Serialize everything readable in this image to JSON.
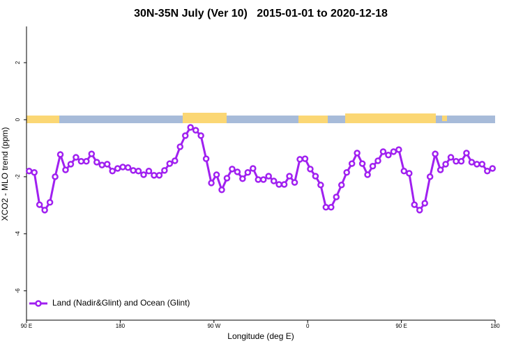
{
  "chart_data": {
    "type": "line",
    "title": "30N-35N July (Ver 10)   2015-01-01 to 2020-12-18",
    "x_label": "Longitude (deg E)",
    "y_label": "XCO2 - MLO trend (ppm)",
    "xlim": [
      90,
      540
    ],
    "xticks": [
      {
        "value": 90,
        "label": "90 E"
      },
      {
        "value": 180,
        "label": "180"
      },
      {
        "value": 270,
        "label": "90 W"
      },
      {
        "value": 360,
        "label": "0"
      },
      {
        "value": 450,
        "label": "90 E"
      },
      {
        "value": 540,
        "label": "180"
      }
    ],
    "ylim": [
      -7.03,
      3.27
    ],
    "yticks": [
      -6,
      -4,
      -2,
      0,
      2
    ],
    "legend": "bottom-left",
    "x": [
      92.5,
      97.5,
      102.5,
      107.5,
      112.5,
      117.5,
      122.5,
      127.5,
      132.5,
      137.5,
      142.5,
      147.5,
      152.5,
      157.5,
      162.5,
      167.5,
      172.5,
      177.5,
      182.5,
      187.5,
      192.5,
      197.5,
      202.5,
      207.5,
      212.5,
      217.5,
      222.5,
      227.5,
      232.5,
      237.5,
      242.5,
      247.5,
      252.5,
      257.5,
      262.5,
      267.5,
      272.5,
      277.5,
      282.5,
      287.5,
      292.5,
      297.5,
      302.5,
      307.5,
      312.5,
      317.5,
      322.5,
      327.5,
      332.5,
      337.5,
      342.5,
      347.5,
      352.5,
      357.5,
      362.5,
      367.5,
      372.5,
      377.5,
      382.5,
      387.5,
      392.5,
      397.5,
      402.5,
      407.5,
      412.5,
      417.5,
      422.5,
      427.5,
      432.5,
      437.5,
      442.5,
      447.5,
      452.5,
      457.5,
      462.5,
      467.5,
      472.5,
      477.5,
      482.5,
      487.5,
      492.5,
      497.5,
      502.5,
      507.5,
      512.5,
      517.5,
      522.5,
      527.5,
      532.5,
      537.5
    ],
    "series": [
      {
        "name": "Land (Nadir&Glint) and Ocean (Glint)",
        "color": "#a020f0",
        "values": [
          -1.8,
          -1.85,
          -2.98,
          -3.17,
          -2.9,
          -2.0,
          -1.22,
          -1.76,
          -1.56,
          -1.32,
          -1.46,
          -1.46,
          -1.2,
          -1.49,
          -1.59,
          -1.56,
          -1.8,
          -1.71,
          -1.66,
          -1.68,
          -1.78,
          -1.8,
          -1.93,
          -1.8,
          -1.95,
          -1.95,
          -1.78,
          -1.54,
          -1.44,
          -0.95,
          -0.56,
          -0.27,
          -0.37,
          -0.56,
          -1.37,
          -2.22,
          -1.93,
          -2.46,
          -2.05,
          -1.73,
          -1.83,
          -2.07,
          -1.85,
          -1.71,
          -2.1,
          -2.1,
          -1.98,
          -2.15,
          -2.27,
          -2.27,
          -1.98,
          -2.2,
          -1.39,
          -1.37,
          -1.73,
          -1.98,
          -2.29,
          -3.07,
          -3.07,
          -2.71,
          -2.29,
          -1.85,
          -1.54,
          -1.17,
          -1.54,
          -1.93,
          -1.63,
          -1.44,
          -1.12,
          -1.24,
          -1.12,
          -1.05,
          -1.8,
          -1.88,
          -2.98,
          -3.17,
          -2.93,
          -2.0,
          -1.2,
          -1.76,
          -1.56,
          -1.32,
          -1.46,
          -1.46,
          -1.17,
          -1.49,
          -1.56,
          -1.56,
          -1.8,
          -1.71
        ]
      }
    ]
  }
}
